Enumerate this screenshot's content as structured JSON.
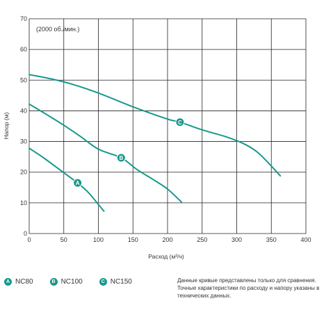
{
  "chart_data": {
    "type": "line",
    "annotation": "(2000 об./мин.)",
    "xlabel": "Расход (м³/ч)",
    "ylabel": "Напор (м)",
    "xlim": [
      0,
      400
    ],
    "ylim": [
      0,
      70
    ],
    "x_ticks": [
      0,
      50,
      100,
      150,
      200,
      250,
      300,
      350,
      400
    ],
    "y_ticks": [
      0,
      10,
      20,
      30,
      40,
      50,
      60,
      70
    ],
    "grid": true,
    "line_color": "#16988c",
    "series": [
      {
        "name": "NC80",
        "marker": "A",
        "marker_at": [
          70,
          16.5
        ],
        "points": [
          [
            0,
            27.8
          ],
          [
            20,
            24.8
          ],
          [
            40,
            21.5
          ],
          [
            55,
            19
          ],
          [
            70,
            16.5
          ],
          [
            85,
            13.5
          ],
          [
            100,
            9.5
          ],
          [
            108,
            7.3
          ]
        ]
      },
      {
        "name": "NC100",
        "marker": "B",
        "marker_at": [
          133,
          24.7
        ],
        "points": [
          [
            0,
            42.2
          ],
          [
            25,
            38.8
          ],
          [
            50,
            35.3
          ],
          [
            75,
            31.5
          ],
          [
            100,
            27.5
          ],
          [
            133,
            24.7
          ],
          [
            155,
            21
          ],
          [
            180,
            17.5
          ],
          [
            200,
            14.5
          ],
          [
            220,
            10.3
          ]
        ]
      },
      {
        "name": "NC150",
        "marker": "C",
        "marker_at": [
          218,
          36.3
        ],
        "points": [
          [
            0,
            51.8
          ],
          [
            30,
            50.5
          ],
          [
            60,
            48.8
          ],
          [
            100,
            45.8
          ],
          [
            150,
            41.3
          ],
          [
            200,
            37.3
          ],
          [
            218,
            36.3
          ],
          [
            250,
            33.8
          ],
          [
            285,
            31.5
          ],
          [
            310,
            29.3
          ],
          [
            330,
            26.5
          ],
          [
            350,
            22
          ],
          [
            363,
            18.8
          ]
        ]
      }
    ]
  },
  "legend": [
    {
      "marker": "A",
      "label": "NC80"
    },
    {
      "marker": "B",
      "label": "NC100"
    },
    {
      "marker": "C",
      "label": "NC150"
    }
  ],
  "note": "Данные кривые представлены только для сравнения. Точные характеристики по расходу и напору указаны в технических данных."
}
